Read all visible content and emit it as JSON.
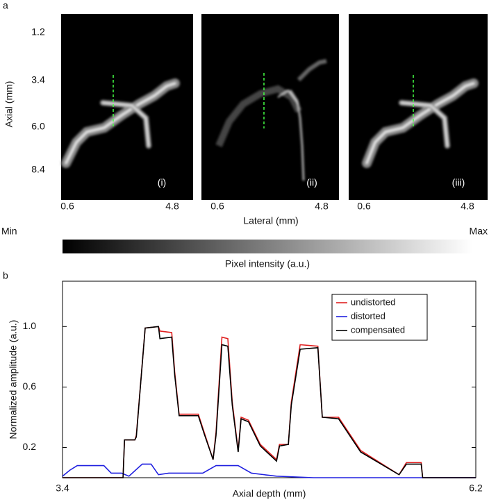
{
  "figure_a": {
    "label": "a",
    "panels": [
      "(i)",
      "(ii)",
      "(iii)"
    ],
    "axial_ticks": [
      "1.2",
      "3.4",
      "6.0",
      "8.4"
    ],
    "lateral_ticks": [
      "0.6",
      "4.8"
    ],
    "ylabel": "Axial (mm)",
    "xlabel": "Lateral (mm)",
    "colorbar": {
      "min": "Min",
      "max": "Max",
      "label": "Pixel intensity (a.u.)"
    }
  },
  "chart_data": {
    "type": "line",
    "label": "b",
    "xlabel": "Axial depth (mm)",
    "ylabel": "Normalized amplitude (a.u.)",
    "xlim": [
      3.4,
      6.2
    ],
    "ylim": [
      0,
      1.3
    ],
    "xticks": [
      3.4,
      6.2
    ],
    "yticks": [
      0.2,
      0.6,
      {
        "value": 1,
        "label": "1.0"
      }
    ],
    "legend": "upper right",
    "series": [
      {
        "name": "undistorted",
        "color": "#e02020",
        "x": [
          3.4,
          3.81,
          3.82,
          3.89,
          3.9,
          3.96,
          4.05,
          4.06,
          4.14,
          4.16,
          4.19,
          4.32,
          4.36,
          4.42,
          4.44,
          4.48,
          4.52,
          4.55,
          4.59,
          4.61,
          4.66,
          4.74,
          4.85,
          4.87,
          4.93,
          4.95,
          5.01,
          5.13,
          5.16,
          5.27,
          5.42,
          5.68,
          5.73,
          5.83,
          5.84,
          6.2
        ],
        "values": [
          0,
          0,
          0.25,
          0.25,
          0.28,
          0.99,
          1.0,
          0.97,
          0.96,
          0.7,
          0.42,
          0.42,
          0.3,
          0.12,
          0.3,
          0.93,
          0.92,
          0.5,
          0.18,
          0.4,
          0.38,
          0.22,
          0.12,
          0.22,
          0.22,
          0.5,
          0.88,
          0.87,
          0.4,
          0.4,
          0.18,
          0.02,
          0.1,
          0.1,
          0,
          0
        ]
      },
      {
        "name": "distorted",
        "color": "#2020e0",
        "x": [
          3.4,
          3.45,
          3.5,
          3.68,
          3.73,
          3.8,
          3.85,
          3.94,
          4.0,
          4.05,
          4.12,
          4.2,
          4.35,
          4.44,
          4.59,
          4.68,
          4.85,
          5.1,
          6.2
        ],
        "values": [
          0.01,
          0.05,
          0.08,
          0.08,
          0.03,
          0.03,
          0.01,
          0.09,
          0.09,
          0.02,
          0.03,
          0.03,
          0.03,
          0.08,
          0.08,
          0.03,
          0.01,
          0,
          0
        ]
      },
      {
        "name": "compensated",
        "color": "#000000",
        "x": [
          3.4,
          3.81,
          3.82,
          3.89,
          3.9,
          3.96,
          4.05,
          4.06,
          4.14,
          4.16,
          4.19,
          4.32,
          4.36,
          4.42,
          4.44,
          4.48,
          4.52,
          4.55,
          4.59,
          4.61,
          4.66,
          4.74,
          4.85,
          4.87,
          4.93,
          4.95,
          5.01,
          5.13,
          5.16,
          5.27,
          5.42,
          5.68,
          5.73,
          5.83,
          5.84,
          6.2
        ],
        "values": [
          0,
          0,
          0.25,
          0.25,
          0.27,
          0.99,
          1.0,
          0.92,
          0.93,
          0.68,
          0.41,
          0.41,
          0.29,
          0.12,
          0.28,
          0.88,
          0.87,
          0.48,
          0.17,
          0.39,
          0.37,
          0.21,
          0.11,
          0.21,
          0.22,
          0.48,
          0.85,
          0.86,
          0.4,
          0.39,
          0.17,
          0.02,
          0.09,
          0.09,
          0,
          0
        ]
      }
    ]
  }
}
